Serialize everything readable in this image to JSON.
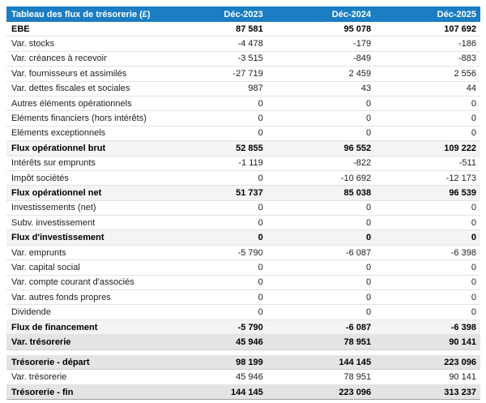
{
  "table": {
    "title": "Tableau des flux de trésorerie (£)",
    "columns": [
      "Déc-2023",
      "Déc-2024",
      "Déc-2025"
    ],
    "rows": [
      {
        "label": "EBE",
        "values": [
          "87 581",
          "95 078",
          "107 692"
        ],
        "variant": "bold"
      },
      {
        "label": "Var. stocks",
        "values": [
          "-4 478",
          "-179",
          "-186"
        ],
        "variant": "normal"
      },
      {
        "label": "Var. créances à recevoir",
        "values": [
          "-3 515",
          "-849",
          "-883"
        ],
        "variant": "normal"
      },
      {
        "label": "Var. fournisseurs et assimilés",
        "values": [
          "-27 719",
          "2 459",
          "2 556"
        ],
        "variant": "normal"
      },
      {
        "label": "Var. dettes fiscales et sociales",
        "values": [
          "987",
          "43",
          "44"
        ],
        "variant": "normal"
      },
      {
        "label": "Autres éléments opérationnels",
        "values": [
          "0",
          "0",
          "0"
        ],
        "variant": "normal"
      },
      {
        "label": "Eléments financiers (hors intérêts)",
        "values": [
          "0",
          "0",
          "0"
        ],
        "variant": "normal"
      },
      {
        "label": "Eléments exceptionnels",
        "values": [
          "0",
          "0",
          "0"
        ],
        "variant": "normal"
      },
      {
        "label": "Flux opérationnel brut",
        "values": [
          "52 855",
          "96 552",
          "109 222"
        ],
        "variant": "subtotal"
      },
      {
        "label": "Intérêts sur emprunts",
        "values": [
          "-1 119",
          "-822",
          "-511"
        ],
        "variant": "normal"
      },
      {
        "label": "Impôt sociétés",
        "values": [
          "0",
          "-10 692",
          "-12 173"
        ],
        "variant": "normal"
      },
      {
        "label": "Flux opérationnel net",
        "values": [
          "51 737",
          "85 038",
          "96 539"
        ],
        "variant": "subtotal"
      },
      {
        "label": "Investissements (net)",
        "values": [
          "0",
          "0",
          "0"
        ],
        "variant": "normal"
      },
      {
        "label": "Subv. investissement",
        "values": [
          "0",
          "0",
          "0"
        ],
        "variant": "normal"
      },
      {
        "label": "Flux d'investissement",
        "values": [
          "0",
          "0",
          "0"
        ],
        "variant": "subtotal"
      },
      {
        "label": "Var. emprunts",
        "values": [
          "-5 790",
          "-6 087",
          "-6 398"
        ],
        "variant": "normal"
      },
      {
        "label": "Var. capital social",
        "values": [
          "0",
          "0",
          "0"
        ],
        "variant": "normal"
      },
      {
        "label": "Var. compte courant d'associés",
        "values": [
          "0",
          "0",
          "0"
        ],
        "variant": "normal"
      },
      {
        "label": "Var. autres fonds propres",
        "values": [
          "0",
          "0",
          "0"
        ],
        "variant": "normal"
      },
      {
        "label": "Dividende",
        "values": [
          "0",
          "0",
          "0"
        ],
        "variant": "normal"
      },
      {
        "label": "Flux de financement",
        "values": [
          "-5 790",
          "-6 087",
          "-6 398"
        ],
        "variant": "subtotal"
      },
      {
        "label": "Var. trésorerie",
        "values": [
          "45 946",
          "78 951",
          "90 141"
        ],
        "variant": "total"
      }
    ],
    "summary_rows": [
      {
        "label": "Trésorerie - départ",
        "values": [
          "98 199",
          "144 145",
          "223 096"
        ],
        "variant": "total"
      },
      {
        "label": "Var. trésorerie",
        "values": [
          "45 946",
          "78 951",
          "90 141"
        ],
        "variant": "normal"
      },
      {
        "label": "Trésorerie - fin",
        "values": [
          "144 145",
          "223 096",
          "313 237"
        ],
        "variant": "total"
      }
    ]
  },
  "colors": {
    "header_bg": "#1b7dc2",
    "header_text": "#ffffff",
    "subtotal_row_bg": "#f4f4f4",
    "total_row_bg": "#e4e4e4",
    "row_border": "#e3e3e3"
  }
}
